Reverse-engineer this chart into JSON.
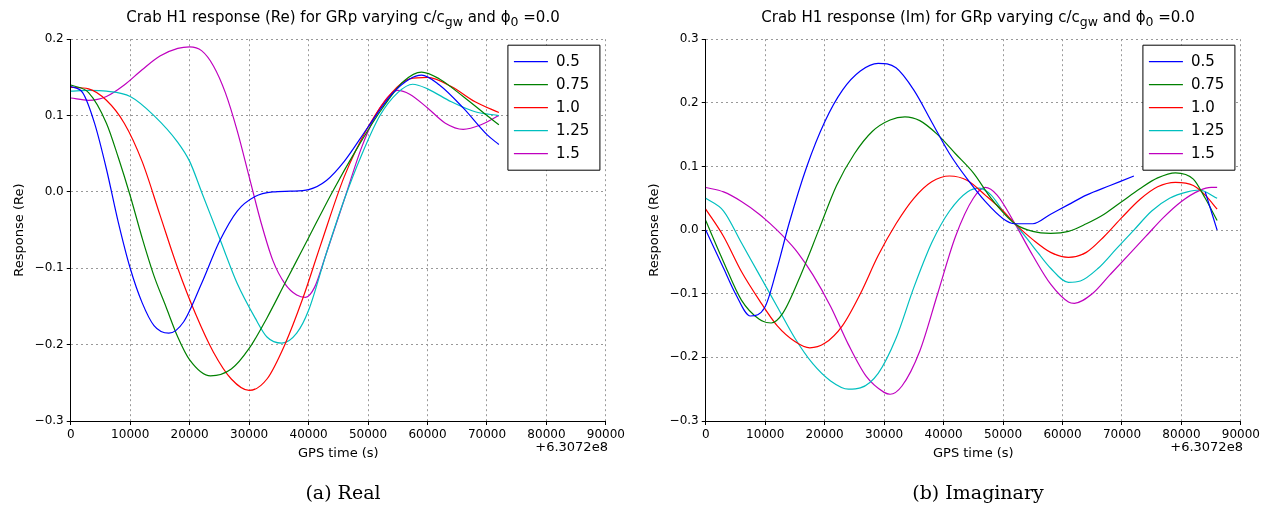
{
  "chart_data": [
    {
      "type": "line",
      "title": "Crab H1 response (Re) for GRp varying c/c$_{gw}$ and ϕ$_{0}$ =0.0",
      "xlabel": "GPS time (s)",
      "ylabel": "Response (Re)",
      "annotations": [
        "+6.3072e8",
        "(a) Real"
      ],
      "xlim": [
        0,
        90000
      ],
      "xticks": [
        0,
        10000,
        20000,
        30000,
        40000,
        50000,
        60000,
        70000,
        80000,
        90000
      ],
      "ylim": [
        -0.3,
        0.2
      ],
      "yticks": [
        {
          "value": -0.3,
          "label": "−0.3"
        },
        {
          "value": -0.2,
          "label": "−0.2"
        },
        {
          "value": -0.1,
          "label": "−0.1"
        },
        {
          "value": 0,
          "label": "0.0"
        },
        {
          "value": 0.1,
          "label": "0.1"
        },
        {
          "value": 0.2,
          "label": "0.2"
        }
      ],
      "grid": true,
      "legend": "top right",
      "line_style": "solid",
      "marker": "none",
      "series": [
        {
          "name": "0.5",
          "color": "#0000ff",
          "x": [
            0,
            2000,
            4000,
            6000,
            8000,
            10000,
            12000,
            14000,
            16500,
            19000,
            22000,
            25000,
            28000,
            31000,
            34000,
            37000,
            40000,
            43000,
            46000,
            50000,
            54000,
            57000,
            59000,
            62000,
            66000,
            70000,
            72000
          ],
          "values": [
            0.138,
            0.13,
            0.09,
            0.03,
            -0.04,
            -0.1,
            -0.145,
            -0.175,
            -0.185,
            -0.17,
            -0.12,
            -0.065,
            -0.025,
            -0.006,
            0,
            0.001,
            0.003,
            0.015,
            0.04,
            0.085,
            0.128,
            0.148,
            0.153,
            0.14,
            0.11,
            0.075,
            0.062
          ]
        },
        {
          "name": "0.75",
          "color": "#008000",
          "x": [
            0,
            3000,
            6000,
            8000,
            10000,
            12000,
            14000,
            16000,
            18000,
            20000,
            23500,
            27000,
            30000,
            33000,
            36000,
            40000,
            44000,
            48000,
            52000,
            56000,
            59000,
            62000,
            66000,
            70000,
            72000
          ],
          "values": [
            0.14,
            0.13,
            0.09,
            0.045,
            -0.005,
            -0.06,
            -0.11,
            -0.15,
            -0.19,
            -0.22,
            -0.241,
            -0.232,
            -0.205,
            -0.165,
            -0.12,
            -0.06,
            0,
            0.055,
            0.105,
            0.145,
            0.157,
            0.148,
            0.125,
            0.1,
            0.088
          ]
        },
        {
          "name": "1.0",
          "color": "#ff0000",
          "x": [
            0,
            3000,
            6000,
            9000,
            12000,
            15000,
            18000,
            21000,
            24000,
            27000,
            30000,
            33000,
            36000,
            39000,
            42000,
            46000,
            50000,
            54000,
            57000,
            60000,
            64000,
            68000,
            72000
          ],
          "values": [
            0.137,
            0.135,
            0.12,
            0.09,
            0.04,
            -0.03,
            -0.1,
            -0.16,
            -0.21,
            -0.245,
            -0.26,
            -0.245,
            -0.2,
            -0.14,
            -0.07,
            0.02,
            0.085,
            0.13,
            0.148,
            0.15,
            0.138,
            0.118,
            0.104
          ]
        },
        {
          "name": "1.25",
          "color": "#00bfbf",
          "x": [
            0,
            3000,
            6000,
            10000,
            14000,
            18000,
            20000,
            22000,
            25000,
            28000,
            31000,
            33000,
            35500,
            38000,
            40000,
            43000,
            46000,
            49000,
            52000,
            55000,
            57500,
            60000,
            64000,
            68000,
            72000
          ],
          "values": [
            0.132,
            0.133,
            0.132,
            0.125,
            0.1,
            0.065,
            0.04,
            0,
            -0.06,
            -0.12,
            -0.165,
            -0.19,
            -0.198,
            -0.185,
            -0.155,
            -0.08,
            -0.01,
            0.05,
            0.1,
            0.13,
            0.141,
            0.135,
            0.118,
            0.105,
            0.1
          ]
        },
        {
          "name": "1.5",
          "color": "#bf00bf",
          "x": [
            0,
            3000,
            6000,
            9000,
            12000,
            15000,
            18000,
            20000,
            22000,
            24000,
            26000,
            28000,
            30000,
            32000,
            34000,
            36000,
            38000,
            39500,
            41000,
            43000,
            46000,
            49000,
            52000,
            55000,
            57000,
            60000,
            63000,
            66000,
            69000,
            72000
          ],
          "values": [
            0.123,
            0.12,
            0.125,
            0.14,
            0.16,
            0.178,
            0.188,
            0.19,
            0.185,
            0.165,
            0.13,
            0.08,
            0.02,
            -0.04,
            -0.09,
            -0.12,
            -0.135,
            -0.138,
            -0.125,
            -0.08,
            -0.01,
            0.06,
            0.11,
            0.133,
            0.128,
            0.11,
            0.09,
            0.082,
            0.088,
            0.1
          ]
        }
      ]
    },
    {
      "type": "line",
      "title": "Crab H1 response (Im) for GRp varying c/c$_{gw}$ and ϕ$_{0}$ =0.0",
      "xlabel": "GPS time (s)",
      "ylabel": "Response (Re)",
      "annotations": [
        "+6.3072e8",
        "(b) Imaginary"
      ],
      "xlim": [
        0,
        90000
      ],
      "xticks": [
        0,
        10000,
        20000,
        30000,
        40000,
        50000,
        60000,
        70000,
        80000,
        90000
      ],
      "ylim": [
        -0.3,
        0.3
      ],
      "yticks": [
        {
          "value": -0.3,
          "label": "−0.3"
        },
        {
          "value": -0.2,
          "label": "−0.2"
        },
        {
          "value": -0.1,
          "label": "−0.1"
        },
        {
          "value": 0,
          "label": "0.0"
        },
        {
          "value": 0.1,
          "label": "0.1"
        },
        {
          "value": 0.2,
          "label": "0.2"
        },
        {
          "value": 0.3,
          "label": "0.3"
        }
      ],
      "grid": true,
      "legend": "top right",
      "line_style": "solid",
      "marker": "none",
      "series": [
        {
          "name": "0.5",
          "color": "#0000ff",
          "x": [
            0,
            3000,
            5000,
            7500,
            10000,
            12000,
            14000,
            17000,
            20000,
            23000,
            26000,
            29000,
            32000,
            35000,
            38000,
            41000,
            44000,
            47000,
            50000,
            52000,
            55000,
            58000,
            61000,
            64000,
            68000,
            72000,
            76000,
            79000,
            82000,
            84000,
            86000
          ],
          "values": [
            0,
            -0.06,
            -0.1,
            -0.135,
            -0.12,
            -0.06,
            0.01,
            0.1,
            0.17,
            0.22,
            0.25,
            0.262,
            0.255,
            0.22,
            0.17,
            0.12,
            0.08,
            0.045,
            0.018,
            0.01,
            0.01,
            0.025,
            0.04,
            0.055,
            0.07,
            0.085,
            null,
            null,
            null,
            0.06,
            0
          ]
        },
        {
          "name": "0.75",
          "color": "#008000",
          "x": [
            0,
            3000,
            6000,
            9000,
            11000,
            13000,
            16000,
            19000,
            22000,
            25000,
            28000,
            31000,
            33500,
            36000,
            39000,
            42000,
            45000,
            48000,
            52000,
            55000,
            58000,
            61000,
            64000,
            67000,
            70000,
            73000,
            76000,
            79000,
            82000,
            84000,
            86000
          ],
          "values": [
            0.015,
            -0.05,
            -0.11,
            -0.14,
            -0.146,
            -0.13,
            -0.07,
            0,
            0.07,
            0.12,
            0.155,
            0.173,
            0.178,
            0.172,
            0.15,
            0.12,
            0.09,
            0.05,
            0.01,
            -0.002,
            -0.005,
            -0.002,
            0.01,
            0.025,
            0.045,
            0.065,
            0.082,
            0.09,
            0.08,
            0.05,
            0.015
          ]
        },
        {
          "name": "1.0",
          "color": "#ff0000",
          "x": [
            0,
            3000,
            6000,
            9000,
            12000,
            15000,
            17500,
            20000,
            23000,
            26000,
            29000,
            32000,
            35000,
            38000,
            41000,
            44000,
            47000,
            50000,
            52000,
            55000,
            58000,
            61000,
            64000,
            67000,
            70000,
            73000,
            76000,
            79000,
            82000,
            84000,
            86000
          ],
          "values": [
            0.033,
            -0.01,
            -0.065,
            -0.11,
            -0.15,
            -0.175,
            -0.185,
            -0.178,
            -0.15,
            -0.1,
            -0.04,
            0.01,
            0.05,
            0.076,
            0.085,
            0.078,
            0.055,
            0.03,
            0.01,
            -0.015,
            -0.035,
            -0.043,
            -0.035,
            -0.01,
            0.02,
            0.048,
            0.068,
            0.075,
            0.07,
            0.055,
            0.033
          ]
        },
        {
          "name": "1.25",
          "color": "#00bfbf",
          "x": [
            0,
            3000,
            6000,
            9000,
            12000,
            15000,
            18000,
            21000,
            24000,
            26000,
            29000,
            32000,
            35000,
            38000,
            41000,
            44000,
            46000,
            48000,
            50000,
            52000,
            55000,
            58000,
            61000,
            63000,
            66000,
            69000,
            72000,
            75000,
            78000,
            81000,
            83000,
            86000
          ],
          "values": [
            0.05,
            0.03,
            -0.02,
            -0.07,
            -0.12,
            -0.17,
            -0.21,
            -0.237,
            -0.25,
            -0.248,
            -0.225,
            -0.17,
            -0.09,
            -0.02,
            0.03,
            0.06,
            0.066,
            0.055,
            0.03,
            0.01,
            -0.025,
            -0.06,
            -0.082,
            -0.08,
            -0.06,
            -0.03,
            0,
            0.03,
            0.05,
            0.06,
            0.063,
            0.05
          ]
        },
        {
          "name": "1.5",
          "color": "#bf00bf",
          "x": [
            0,
            3000,
            6000,
            9000,
            12000,
            15000,
            18000,
            21000,
            24000,
            27000,
            30000,
            31000,
            33000,
            36000,
            39000,
            42000,
            45000,
            47000,
            49000,
            52000,
            55000,
            58000,
            61000,
            62000,
            65000,
            68000,
            71000,
            74000,
            77000,
            80000,
            83000,
            85000,
            86000
          ],
          "values": [
            0.067,
            0.06,
            0.045,
            0.025,
            0,
            -0.03,
            -0.07,
            -0.12,
            -0.18,
            -0.23,
            -0.255,
            -0.258,
            -0.245,
            -0.19,
            -0.1,
            -0.01,
            0.05,
            0.067,
            0.055,
            0.01,
            -0.04,
            -0.085,
            -0.113,
            -0.115,
            -0.1,
            -0.07,
            -0.04,
            -0.01,
            0.02,
            0.045,
            0.062,
            0.067,
            0.067
          ]
        }
      ]
    }
  ]
}
